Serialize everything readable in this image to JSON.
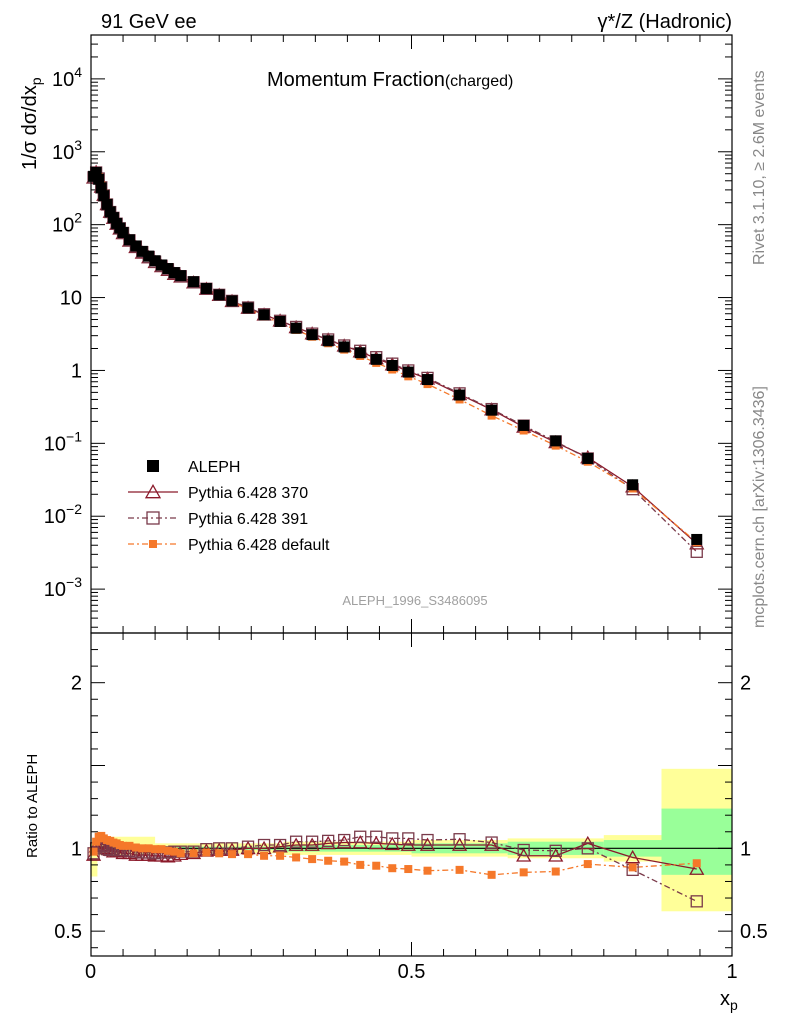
{
  "header": {
    "left": "91 GeV ee",
    "right": "γ*/Z (Hadronic)"
  },
  "side_labels": {
    "rivet": "Rivet 3.1.10, ≥ 2.6M events",
    "mcplots": "mcplots.cern.ch [arXiv:1306.3436]"
  },
  "chart_data": [
    {
      "type": "scatter",
      "title": "Momentum Fraction",
      "title_sub": "(charged)",
      "analysis_label": "ALEPH_1996_S3486095",
      "ylabel": "1/σ dσ/dx_p",
      "ylabel_main": "1/σ dσ/dx",
      "ylabel_sub": "p",
      "yscale": "log",
      "xlim": [
        0,
        1
      ],
      "ylim": [
        0.00025,
        40000
      ],
      "yticks": [
        {
          "value": 10000,
          "label": "10",
          "exp": "4"
        },
        {
          "value": 1000,
          "label": "10",
          "exp": "3"
        },
        {
          "value": 100,
          "label": "10",
          "exp": "2"
        },
        {
          "value": 10,
          "label": "10",
          "exp": ""
        },
        {
          "value": 1,
          "label": "1",
          "exp": ""
        },
        {
          "value": 0.1,
          "label": "10",
          "exp": "−1"
        },
        {
          "value": 0.01,
          "label": "10",
          "exp": "−2"
        },
        {
          "value": 0.001,
          "label": "10",
          "exp": "−3"
        }
      ],
      "legend": [
        {
          "name": "ALEPH",
          "color": "#000000",
          "marker": "filled-square"
        },
        {
          "name": "Pythia 6.428 370",
          "color": "#8b1a2b",
          "marker": "open-triangle"
        },
        {
          "name": "Pythia 6.428 391",
          "color": "#7a3a4a",
          "marker": "open-square"
        },
        {
          "name": "Pythia 6.428 default",
          "color": "#f5782a",
          "marker": "filled-square"
        }
      ],
      "x": [
        0.004,
        0.008,
        0.012,
        0.016,
        0.02,
        0.025,
        0.03,
        0.035,
        0.04,
        0.045,
        0.05,
        0.06,
        0.07,
        0.08,
        0.09,
        0.1,
        0.11,
        0.12,
        0.13,
        0.14,
        0.16,
        0.18,
        0.2,
        0.22,
        0.245,
        0.27,
        0.295,
        0.32,
        0.345,
        0.37,
        0.395,
        0.42,
        0.445,
        0.47,
        0.495,
        0.525,
        0.575,
        0.625,
        0.675,
        0.725,
        0.775,
        0.845,
        0.945
      ],
      "series": [
        {
          "name": "ALEPH",
          "values": [
            460,
            520,
            420,
            320,
            250,
            190,
            150,
            125,
            104,
            90,
            78,
            62,
            51,
            43,
            37,
            32,
            28,
            25,
            22,
            20,
            16.5,
            13.3,
            10.9,
            9.0,
            7.2,
            5.8,
            4.7,
            3.8,
            3.1,
            2.55,
            2.1,
            1.75,
            1.42,
            1.17,
            0.95,
            0.75,
            0.46,
            0.285,
            0.176,
            0.108,
            0.062,
            0.027,
            0.0048
          ]
        },
        {
          "name": "Pythia 6.428 370",
          "values": [
            440,
            525,
            435,
            330,
            255,
            190,
            149,
            123,
            102,
            88,
            76,
            60,
            49,
            41,
            35.5,
            30.5,
            26.8,
            23.8,
            21,
            19.3,
            16,
            13.1,
            10.8,
            8.9,
            7.2,
            5.8,
            4.8,
            3.9,
            3.2,
            2.63,
            2.18,
            1.81,
            1.46,
            1.2,
            0.97,
            0.77,
            0.47,
            0.29,
            0.168,
            0.103,
            0.064,
            0.0255,
            0.0042
          ]
        },
        {
          "name": "Pythia 6.428 391",
          "values": [
            445,
            520,
            430,
            325,
            252,
            189,
            149,
            124,
            103,
            89,
            77,
            61,
            50,
            42,
            36,
            31,
            27.3,
            24.4,
            21.6,
            19.6,
            16.2,
            13.2,
            10.9,
            9.0,
            7.3,
            5.9,
            4.8,
            3.95,
            3.2,
            2.66,
            2.2,
            1.86,
            1.52,
            1.24,
            1.0,
            0.79,
            0.485,
            0.295,
            0.175,
            0.106,
            0.062,
            0.0235,
            0.00325
          ]
        },
        {
          "name": "Pythia 6.428 default",
          "values": [
            450,
            540,
            450,
            345,
            265,
            200,
            157,
            129,
            107,
            92,
            79,
            63,
            51,
            43,
            37,
            31.8,
            27.8,
            24.6,
            21.6,
            19.4,
            16,
            13,
            10.6,
            8.7,
            6.95,
            5.55,
            4.48,
            3.6,
            2.9,
            2.36,
            1.93,
            1.58,
            1.27,
            1.03,
            0.83,
            0.65,
            0.4,
            0.24,
            0.15,
            0.093,
            0.056,
            0.024,
            0.0044
          ]
        }
      ]
    },
    {
      "type": "scatter",
      "ylabel": "Ratio to ALEPH",
      "xlabel": "x_p",
      "xlabel_main": "x",
      "xlabel_sub": "p",
      "xlim": [
        0,
        1
      ],
      "ylim": [
        0.35,
        2.3
      ],
      "xticks": [
        {
          "value": 0,
          "label": "0"
        },
        {
          "value": 0.5,
          "label": "0.5"
        },
        {
          "value": 1,
          "label": "1"
        }
      ],
      "yticks": [
        {
          "value": 0.5,
          "label": "0.5"
        },
        {
          "value": 1,
          "label": "1"
        },
        {
          "value": 2,
          "label": "2"
        }
      ],
      "bands": {
        "green": [
          {
            "x0": 0.0,
            "x1": 0.1,
            "lo": 0.985,
            "hi": 1.015
          },
          {
            "x0": 0.1,
            "x1": 0.3,
            "lo": 0.99,
            "hi": 1.01
          },
          {
            "x0": 0.3,
            "x1": 0.5,
            "lo": 0.98,
            "hi": 1.02
          },
          {
            "x0": 0.5,
            "x1": 0.65,
            "lo": 0.97,
            "hi": 1.03
          },
          {
            "x0": 0.65,
            "x1": 0.8,
            "lo": 0.96,
            "hi": 1.04
          },
          {
            "x0": 0.8,
            "x1": 0.89,
            "lo": 0.95,
            "hi": 1.05
          },
          {
            "x0": 0.89,
            "x1": 1.0,
            "lo": 0.84,
            "hi": 1.24
          }
        ],
        "yellow": [
          {
            "x0": 0.0,
            "x1": 0.01,
            "lo": 0.83,
            "hi": 1.04
          },
          {
            "x0": 0.01,
            "x1": 0.1,
            "lo": 0.96,
            "hi": 1.07
          },
          {
            "x0": 0.1,
            "x1": 0.3,
            "lo": 0.97,
            "hi": 1.03
          },
          {
            "x0": 0.3,
            "x1": 0.5,
            "lo": 0.96,
            "hi": 1.04
          },
          {
            "x0": 0.5,
            "x1": 0.65,
            "lo": 0.95,
            "hi": 1.05
          },
          {
            "x0": 0.65,
            "x1": 0.8,
            "lo": 0.94,
            "hi": 1.06
          },
          {
            "x0": 0.8,
            "x1": 0.89,
            "lo": 0.92,
            "hi": 1.08
          },
          {
            "x0": 0.89,
            "x1": 1.0,
            "lo": 0.62,
            "hi": 1.48
          }
        ]
      },
      "series": [
        {
          "name": "Pythia 6.428 370",
          "values": [
            0.96,
            1.01,
            1.04,
            1.03,
            1.02,
            1.0,
            0.99,
            0.98,
            0.98,
            0.98,
            0.97,
            0.97,
            0.96,
            0.96,
            0.96,
            0.955,
            0.955,
            0.95,
            0.955,
            0.965,
            0.97,
            0.985,
            0.99,
            0.99,
            1.0,
            1.0,
            1.01,
            1.02,
            1.02,
            1.03,
            1.035,
            1.035,
            1.03,
            1.025,
            1.02,
            1.02,
            1.02,
            1.02,
            0.955,
            0.955,
            1.03,
            0.945,
            0.875
          ]
        },
        {
          "name": "Pythia 6.428 391",
          "values": [
            0.97,
            1.0,
            1.02,
            1.015,
            1.01,
            0.995,
            0.99,
            0.99,
            0.99,
            0.99,
            0.99,
            0.985,
            0.98,
            0.975,
            0.975,
            0.97,
            0.975,
            0.975,
            0.98,
            0.98,
            0.98,
            0.995,
            1.0,
            1.0,
            1.01,
            1.02,
            1.02,
            1.04,
            1.04,
            1.045,
            1.05,
            1.07,
            1.07,
            1.06,
            1.06,
            1.05,
            1.055,
            1.035,
            0.99,
            0.985,
            1.0,
            0.87,
            0.68
          ]
        },
        {
          "name": "Pythia 6.428 default",
          "values": [
            0.98,
            1.04,
            1.07,
            1.075,
            1.06,
            1.05,
            1.045,
            1.035,
            1.03,
            1.02,
            1.015,
            1.015,
            1.005,
            1.0,
            1.0,
            0.995,
            0.995,
            0.985,
            0.98,
            0.97,
            0.97,
            0.975,
            0.97,
            0.965,
            0.965,
            0.955,
            0.955,
            0.945,
            0.935,
            0.925,
            0.92,
            0.9,
            0.895,
            0.88,
            0.875,
            0.865,
            0.87,
            0.84,
            0.855,
            0.86,
            0.905,
            0.885,
            0.91
          ]
        }
      ]
    }
  ]
}
